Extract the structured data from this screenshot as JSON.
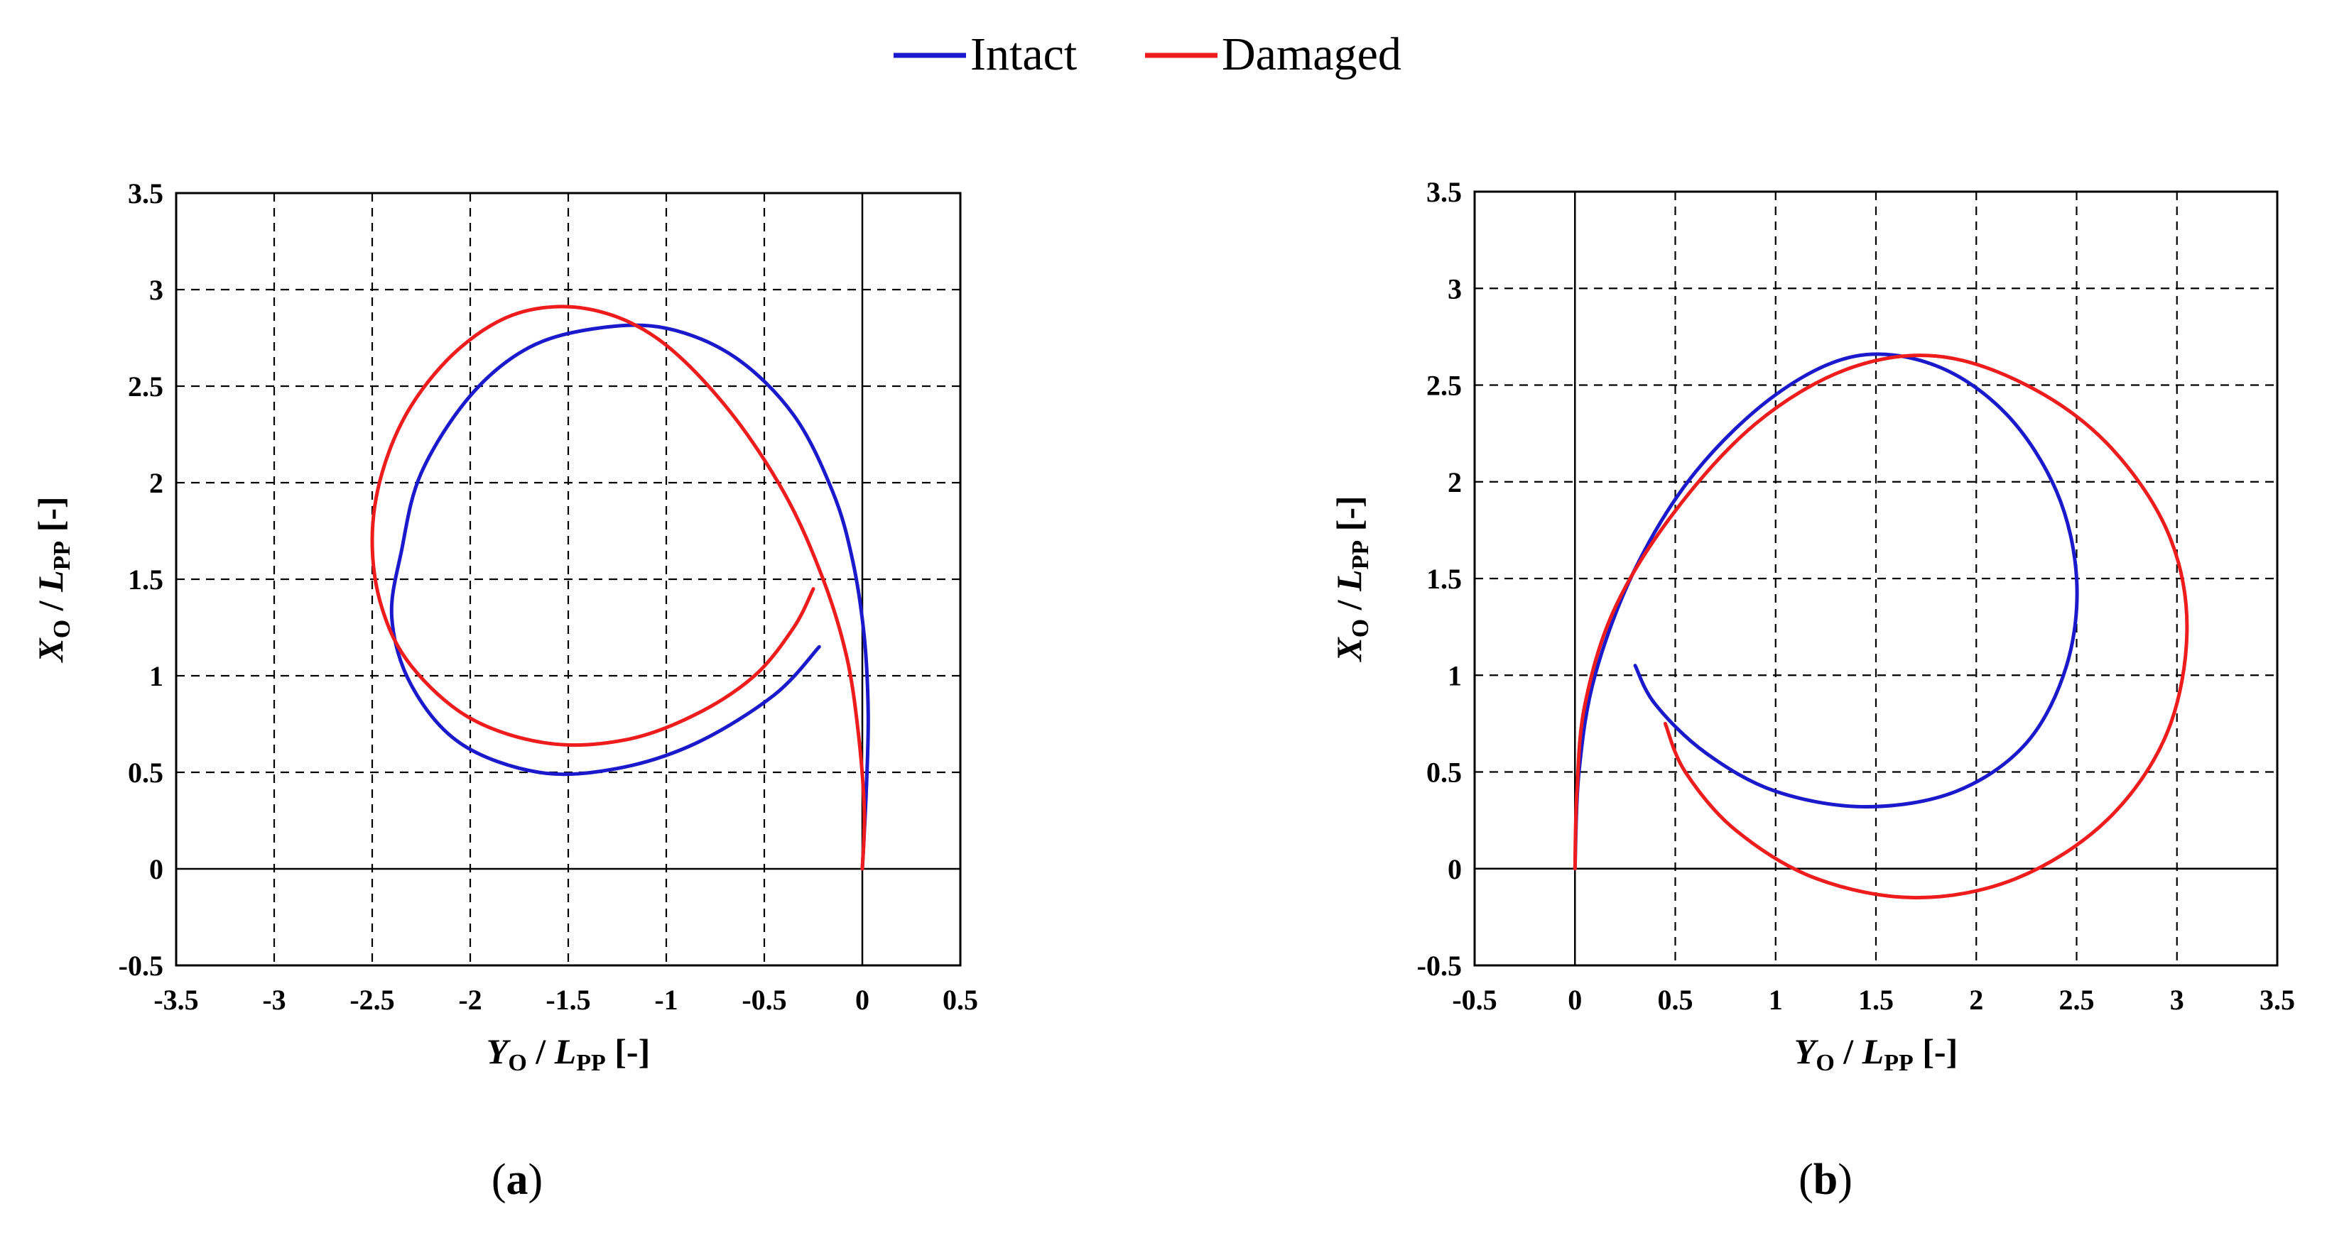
{
  "legend": {
    "position": "top-center",
    "entries": [
      {
        "label": "Intact",
        "color": "#1a1acc"
      },
      {
        "label": "Damaged",
        "color": "#ee1c1c"
      }
    ]
  },
  "chart_data": [
    {
      "type": "line",
      "panel_label": "(a)",
      "panel_letter": "a",
      "xlabel": {
        "main": "Y",
        "sub": "O",
        "sep": " / ",
        "main2": "L",
        "sub2": "PP",
        "unit": " [-]"
      },
      "ylabel": {
        "main": "X",
        "sub": "O",
        "sep": " / ",
        "main2": "L",
        "sub2": "PP",
        "unit": " [-]"
      },
      "xlim": [
        -3.5,
        0.5
      ],
      "ylim": [
        -0.5,
        3.5
      ],
      "xticks": [
        "-3.5",
        "-3",
        "-2.5",
        "-2",
        "-1.5",
        "-1",
        "-0.5",
        "0",
        "0.5"
      ],
      "yticks": [
        "-0.5",
        "0",
        "0.5",
        "1",
        "1.5",
        "2",
        "2.5",
        "3",
        "3.5"
      ],
      "grid": true,
      "series": [
        {
          "name": "Intact",
          "color": "#1a1acc",
          "x": [
            0.0,
            0.02,
            0.03,
            0.01,
            -0.05,
            -0.15,
            -0.35,
            -0.65,
            -1.0,
            -1.35,
            -1.7,
            -2.0,
            -2.25,
            -2.35,
            -2.4,
            -2.3,
            -2.05,
            -1.65,
            -1.25,
            -0.85,
            -0.45,
            -0.22
          ],
          "y": [
            0.0,
            0.4,
            0.8,
            1.2,
            1.6,
            1.95,
            2.35,
            2.65,
            2.8,
            2.8,
            2.7,
            2.45,
            2.05,
            1.65,
            1.3,
            0.95,
            0.65,
            0.5,
            0.52,
            0.65,
            0.9,
            1.15
          ]
        },
        {
          "name": "Damaged",
          "color": "#ee1c1c",
          "x": [
            0.0,
            0.01,
            -0.02,
            -0.08,
            -0.2,
            -0.4,
            -0.7,
            -1.05,
            -1.4,
            -1.75,
            -2.05,
            -2.3,
            -2.45,
            -2.5,
            -2.45,
            -2.3,
            -2.0,
            -1.6,
            -1.2,
            -0.85,
            -0.55,
            -0.35,
            -0.25
          ],
          "y": [
            0.0,
            0.3,
            0.7,
            1.1,
            1.5,
            1.95,
            2.4,
            2.75,
            2.9,
            2.88,
            2.7,
            2.4,
            2.05,
            1.7,
            1.35,
            1.05,
            0.78,
            0.65,
            0.67,
            0.8,
            1.0,
            1.25,
            1.45
          ]
        }
      ]
    },
    {
      "type": "line",
      "panel_label": "(b)",
      "panel_letter": "b",
      "xlabel": {
        "main": "Y",
        "sub": "O",
        "sep": " / ",
        "main2": "L",
        "sub2": "PP",
        "unit": " [-]"
      },
      "ylabel": {
        "main": "X",
        "sub": "O",
        "sep": " / ",
        "main2": "L",
        "sub2": "PP",
        "unit": " [-]"
      },
      "xlim": [
        -0.5,
        3.5
      ],
      "ylim": [
        -0.5,
        3.5
      ],
      "xticks": [
        "-0.5",
        "0",
        "0.5",
        "1",
        "1.5",
        "2",
        "2.5",
        "3",
        "3.5"
      ],
      "yticks": [
        "-0.5",
        "0",
        "0.5",
        "1",
        "1.5",
        "2",
        "2.5",
        "3",
        "3.5"
      ],
      "grid": true,
      "series": [
        {
          "name": "Intact",
          "color": "#1a1acc",
          "x": [
            0.0,
            0.02,
            0.1,
            0.3,
            0.6,
            1.0,
            1.4,
            1.8,
            2.15,
            2.4,
            2.5,
            2.45,
            2.25,
            1.9,
            1.45,
            1.0,
            0.65,
            0.4,
            0.3
          ],
          "y": [
            0.0,
            0.5,
            1.0,
            1.55,
            2.05,
            2.45,
            2.65,
            2.6,
            2.35,
            1.95,
            1.5,
            1.05,
            0.65,
            0.4,
            0.32,
            0.4,
            0.6,
            0.85,
            1.05
          ]
        },
        {
          "name": "Damaged",
          "color": "#ee1c1c",
          "x": [
            0.0,
            0.01,
            0.05,
            0.2,
            0.5,
            0.9,
            1.35,
            1.8,
            2.25,
            2.65,
            2.95,
            3.05,
            2.95,
            2.65,
            2.2,
            1.7,
            1.2,
            0.8,
            0.55,
            0.45
          ],
          "y": [
            0.0,
            0.4,
            0.85,
            1.35,
            1.85,
            2.3,
            2.58,
            2.65,
            2.5,
            2.2,
            1.75,
            1.25,
            0.7,
            0.25,
            -0.05,
            -0.15,
            -0.05,
            0.2,
            0.5,
            0.75
          ]
        }
      ]
    }
  ]
}
